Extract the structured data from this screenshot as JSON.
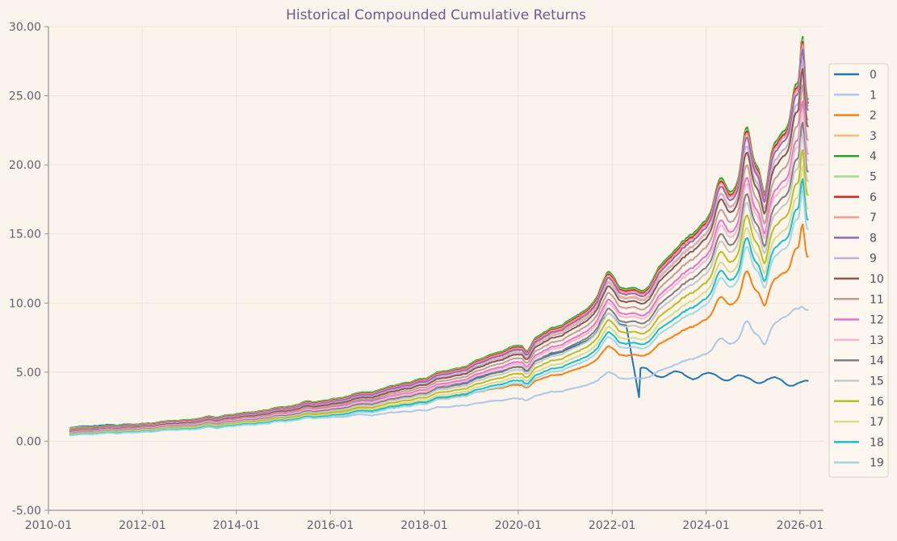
{
  "chart_data": {
    "type": "line",
    "title": "Historical Compounded Cumulative Returns",
    "xlabel": "",
    "ylabel": "",
    "x_range": [
      "2010-01",
      "2026-07"
    ],
    "ylim": [
      -5,
      30
    ],
    "y_ticks": [
      "30.00",
      "25.00",
      "20.00",
      "15.00",
      "10.00",
      "5.00",
      "0.00",
      "-5.00"
    ],
    "x_ticks": [
      "2010-01",
      "2012-01",
      "2014-01",
      "2016-01",
      "2018-01",
      "2020-01",
      "2022-01",
      "2024-01",
      "2026-01"
    ],
    "legend_position": "right",
    "grid": true,
    "series": [
      {
        "name": "0",
        "color": "#1f77b4",
        "final": 4.2
      },
      {
        "name": "1",
        "color": "#aec7e8",
        "final": 9.5
      },
      {
        "name": "2",
        "color": "#ff7f0e",
        "final": 13.5
      },
      {
        "name": "3",
        "color": "#ffbb78",
        "final": 23.5
      },
      {
        "name": "4",
        "color": "#2ca02c",
        "final": 25.0
      },
      {
        "name": "5",
        "color": "#98df8a",
        "final": 24.8
      },
      {
        "name": "6",
        "color": "#d62728",
        "final": 24.7
      },
      {
        "name": "7",
        "color": "#ff9896",
        "final": 24.5
      },
      {
        "name": "8",
        "color": "#9467bd",
        "final": 24.2
      },
      {
        "name": "9",
        "color": "#c5b0d5",
        "final": 23.5
      },
      {
        "name": "10",
        "color": "#8c564b",
        "final": 23.0
      },
      {
        "name": "11",
        "color": "#c49c94",
        "final": 22.0
      },
      {
        "name": "12",
        "color": "#e377c2",
        "final": 21.0
      },
      {
        "name": "13",
        "color": "#f7b6d2",
        "final": 20.5
      },
      {
        "name": "14",
        "color": "#7f7f7f",
        "final": 19.7
      },
      {
        "name": "15",
        "color": "#c7c7c7",
        "final": 19.0
      },
      {
        "name": "16",
        "color": "#bcbd22",
        "final": 18.0
      },
      {
        "name": "17",
        "color": "#dbdb8d",
        "final": 17.0
      },
      {
        "name": "18",
        "color": "#17becf",
        "final": 16.2
      },
      {
        "name": "19",
        "color": "#9edae5",
        "final": 15.5
      }
    ]
  }
}
